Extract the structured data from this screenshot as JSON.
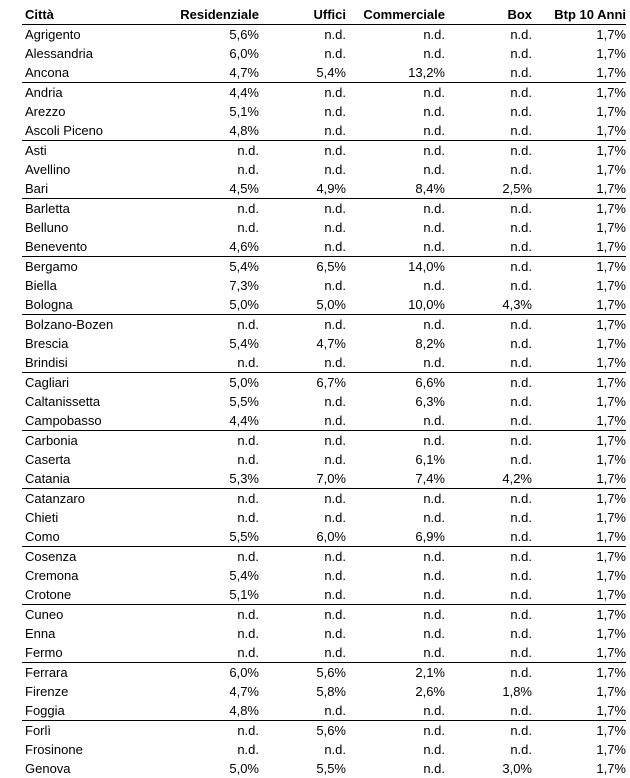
{
  "table": {
    "headers": [
      "Città",
      "Residenziale",
      "Uffici",
      "Commerciale",
      "Box",
      "Btp 10 Anni"
    ],
    "rows": [
      [
        "Agrigento",
        "5,6%",
        "n.d.",
        "n.d.",
        "n.d.",
        "1,7%"
      ],
      [
        "Alessandria",
        "6,0%",
        "n.d.",
        "n.d.",
        "n.d.",
        "1,7%"
      ],
      [
        "Ancona",
        "4,7%",
        "5,4%",
        "13,2%",
        "n.d.",
        "1,7%"
      ],
      [
        "Andria",
        "4,4%",
        "n.d.",
        "n.d.",
        "n.d.",
        "1,7%"
      ],
      [
        "Arezzo",
        "5,1%",
        "n.d.",
        "n.d.",
        "n.d.",
        "1,7%"
      ],
      [
        "Ascoli Piceno",
        "4,8%",
        "n.d.",
        "n.d.",
        "n.d.",
        "1,7%"
      ],
      [
        "Asti",
        "n.d.",
        "n.d.",
        "n.d.",
        "n.d.",
        "1,7%"
      ],
      [
        "Avellino",
        "n.d.",
        "n.d.",
        "n.d.",
        "n.d.",
        "1,7%"
      ],
      [
        "Bari",
        "4,5%",
        "4,9%",
        "8,4%",
        "2,5%",
        "1,7%"
      ],
      [
        "Barletta",
        "n.d.",
        "n.d.",
        "n.d.",
        "n.d.",
        "1,7%"
      ],
      [
        "Belluno",
        "n.d.",
        "n.d.",
        "n.d.",
        "n.d.",
        "1,7%"
      ],
      [
        "Benevento",
        "4,6%",
        "n.d.",
        "n.d.",
        "n.d.",
        "1,7%"
      ],
      [
        "Bergamo",
        "5,4%",
        "6,5%",
        "14,0%",
        "n.d.",
        "1,7%"
      ],
      [
        "Biella",
        "7,3%",
        "n.d.",
        "n.d.",
        "n.d.",
        "1,7%"
      ],
      [
        "Bologna",
        "5,0%",
        "5,0%",
        "10,0%",
        "4,3%",
        "1,7%"
      ],
      [
        "Bolzano-Bozen",
        "n.d.",
        "n.d.",
        "n.d.",
        "n.d.",
        "1,7%"
      ],
      [
        "Brescia",
        "5,4%",
        "4,7%",
        "8,2%",
        "n.d.",
        "1,7%"
      ],
      [
        "Brindisi",
        "n.d.",
        "n.d.",
        "n.d.",
        "n.d.",
        "1,7%"
      ],
      [
        "Cagliari",
        "5,0%",
        "6,7%",
        "6,6%",
        "n.d.",
        "1,7%"
      ],
      [
        "Caltanissetta",
        "5,5%",
        "n.d.",
        "6,3%",
        "n.d.",
        "1,7%"
      ],
      [
        "Campobasso",
        "4,4%",
        "n.d.",
        "n.d.",
        "n.d.",
        "1,7%"
      ],
      [
        "Carbonia",
        "n.d.",
        "n.d.",
        "n.d.",
        "n.d.",
        "1,7%"
      ],
      [
        "Caserta",
        "n.d.",
        "n.d.",
        "6,1%",
        "n.d.",
        "1,7%"
      ],
      [
        "Catania",
        "5,3%",
        "7,0%",
        "7,4%",
        "4,2%",
        "1,7%"
      ],
      [
        "Catanzaro",
        "n.d.",
        "n.d.",
        "n.d.",
        "n.d.",
        "1,7%"
      ],
      [
        "Chieti",
        "n.d.",
        "n.d.",
        "n.d.",
        "n.d.",
        "1,7%"
      ],
      [
        "Como",
        "5,5%",
        "6,0%",
        "6,9%",
        "n.d.",
        "1,7%"
      ],
      [
        "Cosenza",
        "n.d.",
        "n.d.",
        "n.d.",
        "n.d.",
        "1,7%"
      ],
      [
        "Cremona",
        "5,4%",
        "n.d.",
        "n.d.",
        "n.d.",
        "1,7%"
      ],
      [
        "Crotone",
        "5,1%",
        "n.d.",
        "n.d.",
        "n.d.",
        "1,7%"
      ],
      [
        "Cuneo",
        "n.d.",
        "n.d.",
        "n.d.",
        "n.d.",
        "1,7%"
      ],
      [
        "Enna",
        "n.d.",
        "n.d.",
        "n.d.",
        "n.d.",
        "1,7%"
      ],
      [
        "Fermo",
        "n.d.",
        "n.d.",
        "n.d.",
        "n.d.",
        "1,7%"
      ],
      [
        "Ferrara",
        "6,0%",
        "5,6%",
        "2,1%",
        "n.d.",
        "1,7%"
      ],
      [
        "Firenze",
        "4,7%",
        "5,8%",
        "2,6%",
        "1,8%",
        "1,7%"
      ],
      [
        "Foggia",
        "4,8%",
        "n.d.",
        "n.d.",
        "n.d.",
        "1,7%"
      ],
      [
        "Forlì",
        "n.d.",
        "5,6%",
        "n.d.",
        "n.d.",
        "1,7%"
      ],
      [
        "Frosinone",
        "n.d.",
        "n.d.",
        "n.d.",
        "n.d.",
        "1,7%"
      ],
      [
        "Genova",
        "5,0%",
        "5,5%",
        "n.d.",
        "3,0%",
        "1,7%"
      ]
    ]
  }
}
